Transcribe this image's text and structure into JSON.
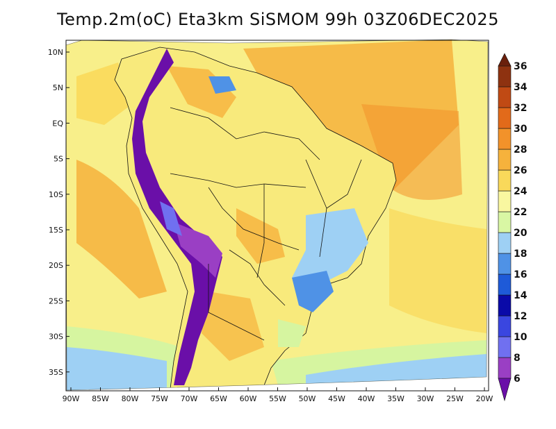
{
  "title": "Temp.2m(oC) Eta3km SiSMOM 99h 03Z06DEC2025",
  "lat_labels": [
    "10N",
    "5N",
    "EQ",
    "5S",
    "10S",
    "15S",
    "20S",
    "25S",
    "30S",
    "35S"
  ],
  "lon_labels": [
    "90W",
    "85W",
    "80W",
    "75W",
    "70W",
    "65W",
    "60W",
    "55W",
    "50W",
    "45W",
    "40W",
    "35W",
    "30W",
    "25W",
    "20W"
  ],
  "colorbar": {
    "labels": [
      "6",
      "8",
      "10",
      "12",
      "14",
      "16",
      "18",
      "20",
      "22",
      "24",
      "26",
      "28",
      "30",
      "32",
      "34",
      "36"
    ],
    "colors": [
      "#6a0fa8",
      "#9a3fc4",
      "#7070f0",
      "#3a46e0",
      "#0a0aa8",
      "#1e5ad8",
      "#4f92e6",
      "#9ed0f4",
      "#d9f7a4",
      "#f9f7a0",
      "#f9d95a",
      "#f6b23c",
      "#f2922a",
      "#e26a1a",
      "#c04a14",
      "#8e3210",
      "#6a200c"
    ]
  },
  "projection_colors": {
    "ocean_warm": "#f8c94a",
    "ocean_hot": "#f3ac3a",
    "ocean_mild": "#f8ef8a",
    "ocean_cool": "#d6f5a0",
    "ocean_cold": "#9ed0f4",
    "land": "#f8ea7c",
    "andes": "#6a0fa8"
  }
}
